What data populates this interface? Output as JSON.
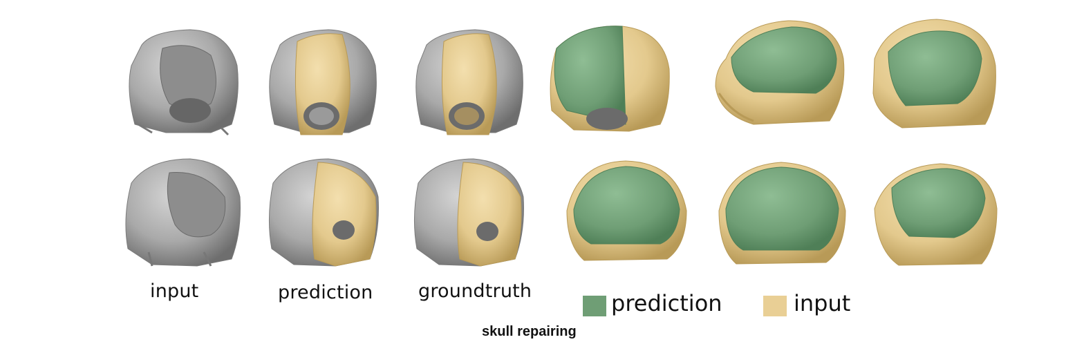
{
  "column_labels": {
    "input": "input",
    "prediction": "prediction",
    "groundtruth": "groundtruth"
  },
  "legend": {
    "prediction": {
      "label": "prediction",
      "color": "#6f9e75"
    },
    "input": {
      "label": "input",
      "color": "#e9cf95"
    }
  },
  "caption": "skull repairing",
  "colors": {
    "bone_gray": "#a9a9a9",
    "bone_gray_dark": "#6e6e6e",
    "bone_tan": "#e3c98d",
    "bone_tan_dark": "#b89a57",
    "implant_green": "#6f9e75",
    "implant_green_dark": "#4f7f57"
  }
}
